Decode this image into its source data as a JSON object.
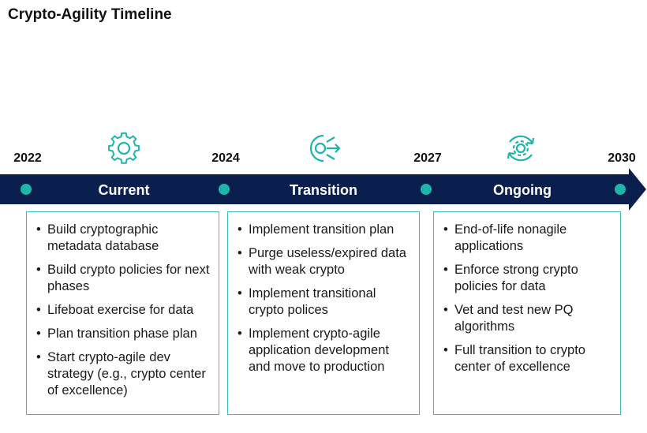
{
  "title": "Crypto-Agility Timeline",
  "years": [
    "2022",
    "2024",
    "2027",
    "2030"
  ],
  "phases": [
    {
      "name": "Current",
      "items": [
        "Build cryptographic metadata database",
        "Build crypto policies for next phases",
        "Lifeboat exercise for data",
        "Plan transition phase plan",
        "Start crypto-agile dev strategy (e.g., crypto center of excellence)"
      ]
    },
    {
      "name": "Transition",
      "items": [
        "Implement transition plan",
        "Purge useless/expired data with weak crypto",
        "Implement transitional crypto polices",
        "Implement crypto-agile application development and move to production"
      ]
    },
    {
      "name": "Ongoing",
      "items": [
        "End-of-life nonagile applications",
        "Enforce strong crypto policies for data",
        "Vet and test new PQ algorithms",
        "Full transition to crypto center of excellence"
      ]
    }
  ]
}
